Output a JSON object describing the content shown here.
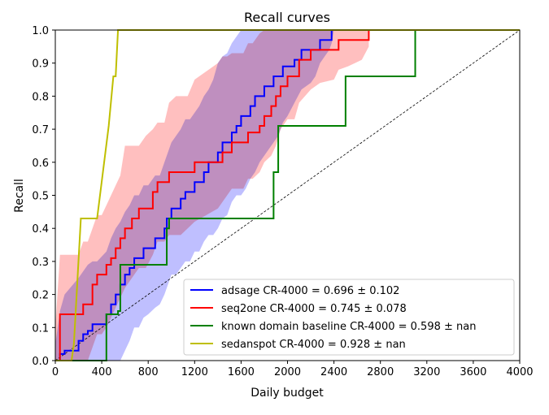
{
  "chart_data": {
    "type": "line",
    "title": "Recall curves",
    "xlabel": "Daily budget",
    "ylabel": "Recall",
    "xlim": [
      0,
      4000
    ],
    "ylim": [
      0,
      1.0
    ],
    "xticks": [
      0,
      400,
      800,
      1200,
      1600,
      2000,
      2400,
      2800,
      3200,
      3600,
      4000
    ],
    "yticks": [
      0.0,
      0.1,
      0.2,
      0.3,
      0.4,
      0.5,
      0.6,
      0.7,
      0.8,
      0.9,
      1.0
    ],
    "grid": false,
    "legend_position": "lower-right",
    "reference_line": {
      "style": "dashed",
      "color": "#000000",
      "points": [
        [
          0,
          0
        ],
        [
          4000,
          1.0
        ]
      ]
    },
    "series": [
      {
        "name": "adsage CR-4000 = 0.696 ± 0.102",
        "color": "#0000ff",
        "band_color": "#aaaaff",
        "x": [
          0,
          40,
          80,
          200,
          240,
          280,
          320,
          360,
          440,
          480,
          520,
          560,
          600,
          640,
          680,
          720,
          760,
          800,
          860,
          900,
          940,
          960,
          1000,
          1040,
          1080,
          1120,
          1160,
          1200,
          1240,
          1280,
          1320,
          1360,
          1400,
          1440,
          1480,
          1520,
          1560,
          1600,
          1640,
          1680,
          1720,
          1760,
          1800,
          1840,
          1880,
          1920,
          1960,
          2000,
          2060,
          2120,
          2200,
          2240,
          2280,
          2320,
          2360,
          2380,
          2400,
          2440
        ],
        "y": [
          0,
          0.02,
          0.03,
          0.06,
          0.08,
          0.09,
          0.11,
          0.11,
          0.14,
          0.17,
          0.2,
          0.23,
          0.26,
          0.28,
          0.31,
          0.31,
          0.34,
          0.34,
          0.37,
          0.37,
          0.4,
          0.43,
          0.46,
          0.46,
          0.49,
          0.51,
          0.51,
          0.54,
          0.54,
          0.57,
          0.6,
          0.6,
          0.63,
          0.66,
          0.66,
          0.69,
          0.71,
          0.74,
          0.74,
          0.77,
          0.8,
          0.8,
          0.83,
          0.83,
          0.86,
          0.86,
          0.89,
          0.89,
          0.91,
          0.94,
          0.94,
          0.94,
          0.97,
          0.97,
          0.97,
          1.0,
          1.0,
          1.0
        ],
        "band_upper": [
          0.05,
          0.15,
          0.2,
          0.25,
          0.27,
          0.29,
          0.3,
          0.3,
          0.33,
          0.37,
          0.4,
          0.42,
          0.45,
          0.47,
          0.5,
          0.5,
          0.53,
          0.53,
          0.56,
          0.56,
          0.6,
          0.62,
          0.66,
          0.68,
          0.7,
          0.73,
          0.73,
          0.75,
          0.77,
          0.8,
          0.82,
          0.85,
          0.9,
          0.92,
          0.93,
          0.96,
          0.98,
          1.0,
          1.0,
          1.0,
          1.0,
          1.0,
          1.0,
          1.0,
          1.0,
          1.0,
          1.0,
          1.0,
          1.0,
          1.0,
          1.0,
          1.0,
          1.0,
          1.0,
          1.0,
          1.0,
          1.0,
          1.0
        ],
        "band_lower": [
          0,
          0,
          0,
          0,
          0,
          0,
          0,
          0,
          0,
          0,
          0,
          0,
          0.03,
          0.06,
          0.1,
          0.1,
          0.13,
          0.14,
          0.16,
          0.17,
          0.2,
          0.22,
          0.26,
          0.26,
          0.28,
          0.3,
          0.3,
          0.33,
          0.33,
          0.36,
          0.38,
          0.38,
          0.4,
          0.43,
          0.44,
          0.48,
          0.5,
          0.5,
          0.52,
          0.55,
          0.57,
          0.6,
          0.62,
          0.64,
          0.66,
          0.68,
          0.72,
          0.74,
          0.78,
          0.82,
          0.84,
          0.86,
          0.9,
          0.92,
          0.94,
          0.96,
          1.0,
          1.0
        ]
      },
      {
        "name": "seq2one CR-4000 = 0.745 ± 0.078",
        "color": "#ff0000",
        "band_color": "#ffaaaa",
        "x": [
          0,
          40,
          80,
          200,
          240,
          280,
          320,
          360,
          400,
          440,
          480,
          520,
          560,
          600,
          660,
          720,
          780,
          840,
          880,
          940,
          980,
          1040,
          1080,
          1140,
          1200,
          1400,
          1440,
          1480,
          1520,
          1580,
          1620,
          1660,
          1700,
          1760,
          1800,
          1860,
          1900,
          1940,
          2000,
          2060,
          2100,
          2200,
          2280,
          2400,
          2440,
          2520,
          2580,
          2640,
          2700
        ],
        "y": [
          0,
          0.14,
          0.14,
          0.14,
          0.17,
          0.17,
          0.23,
          0.26,
          0.26,
          0.29,
          0.31,
          0.34,
          0.37,
          0.4,
          0.43,
          0.46,
          0.46,
          0.51,
          0.54,
          0.54,
          0.57,
          0.57,
          0.57,
          0.57,
          0.6,
          0.6,
          0.63,
          0.63,
          0.66,
          0.66,
          0.66,
          0.69,
          0.69,
          0.71,
          0.74,
          0.77,
          0.8,
          0.83,
          0.86,
          0.86,
          0.91,
          0.94,
          0.94,
          0.94,
          0.97,
          0.97,
          0.97,
          0.97,
          1.0
        ],
        "band_upper": [
          0.1,
          0.32,
          0.32,
          0.32,
          0.36,
          0.36,
          0.4,
          0.44,
          0.44,
          0.47,
          0.5,
          0.53,
          0.56,
          0.65,
          0.65,
          0.65,
          0.68,
          0.7,
          0.72,
          0.72,
          0.78,
          0.8,
          0.8,
          0.8,
          0.85,
          0.9,
          0.92,
          0.92,
          0.93,
          0.93,
          0.93,
          0.96,
          0.96,
          0.99,
          1.0,
          1.0,
          1.0,
          1.0,
          1.0,
          1.0,
          1.0,
          1.0,
          1.0,
          1.0,
          1.0,
          1.0,
          1.0,
          1.0,
          1.0
        ],
        "band_lower": [
          0,
          0,
          0,
          0,
          0,
          0,
          0.04,
          0.08,
          0.08,
          0.1,
          0.13,
          0.16,
          0.19,
          0.22,
          0.25,
          0.28,
          0.28,
          0.32,
          0.36,
          0.36,
          0.38,
          0.38,
          0.38,
          0.4,
          0.42,
          0.46,
          0.48,
          0.5,
          0.52,
          0.52,
          0.52,
          0.55,
          0.55,
          0.57,
          0.6,
          0.62,
          0.65,
          0.7,
          0.73,
          0.73,
          0.78,
          0.82,
          0.84,
          0.85,
          0.88,
          0.89,
          0.9,
          0.91,
          0.95
        ]
      },
      {
        "name": "known domain baseline CR-4000 = 0.598 ± nan",
        "color": "#008000",
        "x": [
          0,
          440,
          440,
          540,
          540,
          560,
          560,
          600,
          600,
          960,
          960,
          980,
          980,
          1780,
          1780,
          1880,
          1880,
          1920,
          1920,
          1960,
          1960,
          2020,
          2020,
          2060,
          2060,
          2500,
          2500,
          2540,
          2540,
          3100,
          3100,
          3160,
          3160,
          4000
        ],
        "y": [
          0,
          0,
          0.14,
          0.14,
          0.15,
          0.15,
          0.29,
          0.29,
          0.29,
          0.29,
          0.4,
          0.4,
          0.43,
          0.43,
          0.43,
          0.43,
          0.57,
          0.57,
          0.71,
          0.71,
          0.71,
          0.71,
          0.71,
          0.71,
          0.71,
          0.71,
          0.86,
          0.86,
          0.86,
          0.86,
          1.0,
          1.0,
          1.0,
          1.0
        ]
      },
      {
        "name": "sedanspot CR-4000 = 0.928 ± nan",
        "color": "#bfbf00",
        "x": [
          0,
          120,
          140,
          160,
          220,
          260,
          300,
          360,
          460,
          500,
          520,
          540,
          4000
        ],
        "y": [
          0,
          0,
          0.0,
          0.05,
          0.43,
          0.43,
          0.43,
          0.43,
          0.71,
          0.86,
          0.86,
          1.0,
          1.0
        ]
      }
    ]
  }
}
